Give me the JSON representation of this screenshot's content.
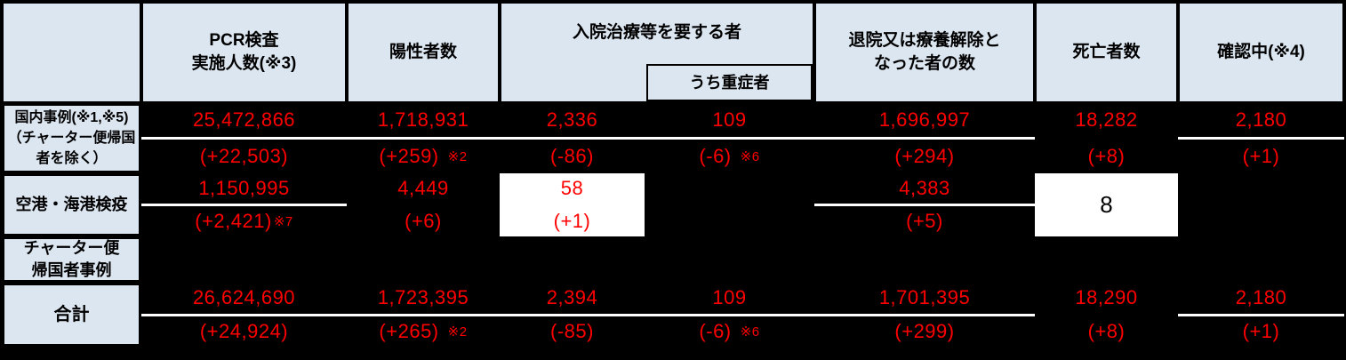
{
  "colors": {
    "header_bg": "#dce6f1",
    "data_bg": "#000000",
    "value_red": "#ff0000",
    "callout_bg": "#ffffff",
    "border": "#000000"
  },
  "header": {
    "pcr": "PCR検査\n実施人数(※3)",
    "positive": "陽性者数",
    "hospitalized_group": "入院治療等を要する者",
    "severe": "うち重症者",
    "discharged": "退院又は療養解除と\nなった者の数",
    "deaths": "死亡者数",
    "confirming": "確認中(※4)"
  },
  "rows": {
    "domestic": {
      "label": "国内事例(※1,※5)\n（チャーター便帰国\n者を除く）",
      "pcr": {
        "value": "25,472,866",
        "change": "(+22,503)"
      },
      "positive": {
        "value": "1,718,931",
        "change": "(+259)",
        "note": "※2"
      },
      "hospitalized": {
        "value": "2,336",
        "change": "(-86)"
      },
      "severe": {
        "value": "109",
        "change": "(-6)",
        "note": "※6"
      },
      "discharged": {
        "value": "1,696,997",
        "change": "(+294)"
      },
      "deaths": {
        "value": "18,282",
        "change": "(+8)"
      },
      "confirming": {
        "value": "2,180",
        "change": "(+1)"
      }
    },
    "quarantine": {
      "label": "空港・海港検疫",
      "pcr": {
        "value": "1,150,995",
        "change": "(+2,421)",
        "note": "※7"
      },
      "positive": {
        "value": "4,449",
        "change": "(+6)"
      },
      "hospitalized": {
        "value": "58",
        "change": "(+1)"
      },
      "discharged": {
        "value": "4,383",
        "change": "(+5)"
      },
      "deaths": {
        "value": "8"
      }
    },
    "charter": {
      "label": "チャーター便\n帰国者事例"
    },
    "total": {
      "label": "合計",
      "pcr": {
        "value": "26,624,690",
        "change": "(+24,924)"
      },
      "positive": {
        "value": "1,723,395",
        "change": "(+265)",
        "note": "※2"
      },
      "hospitalized": {
        "value": "2,394",
        "change": "(-85)"
      },
      "severe": {
        "value": "109",
        "change": "(-6)",
        "note": "※6"
      },
      "discharged": {
        "value": "1,701,395",
        "change": "(+299)"
      },
      "deaths": {
        "value": "18,290",
        "change": "(+8)"
      },
      "confirming": {
        "value": "2,180",
        "change": "(+1)"
      }
    }
  }
}
